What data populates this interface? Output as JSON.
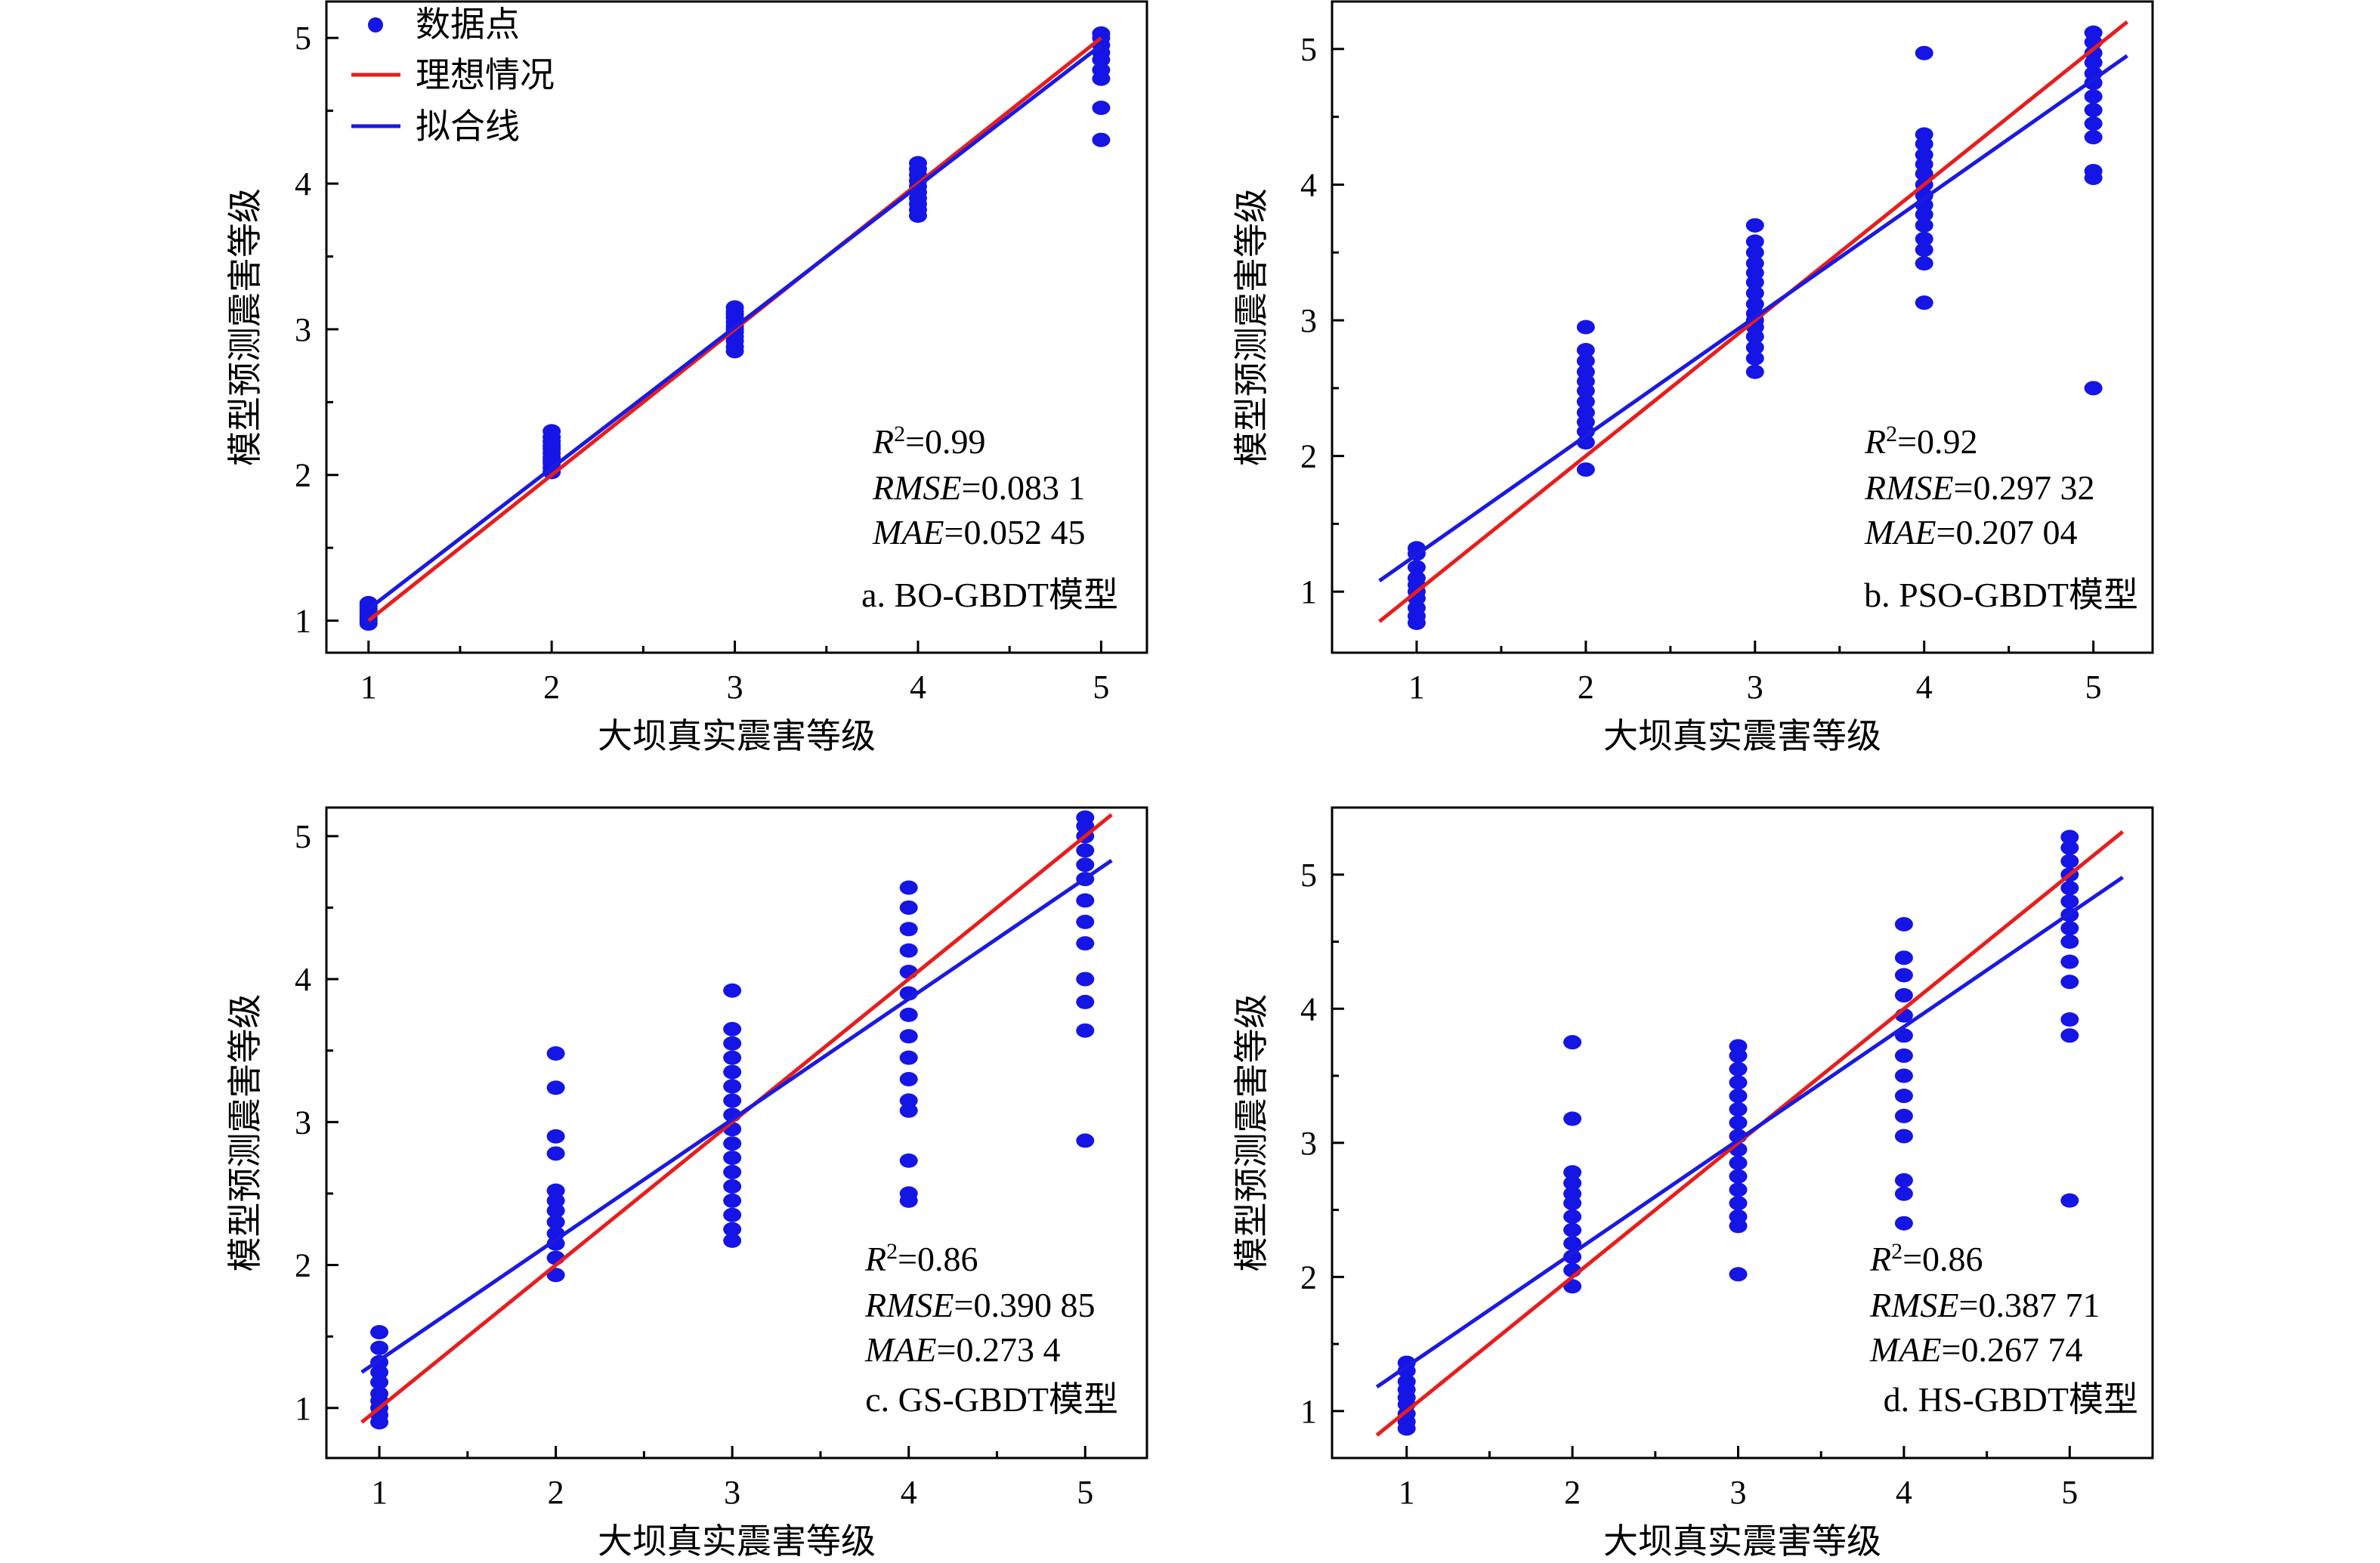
{
  "colors": {
    "points": "#1515e6",
    "ideal": "#e61e1e",
    "fit": "#1a1ae0",
    "axis": "#000000"
  },
  "legend": {
    "points": "数据点",
    "ideal": "理想情况",
    "fit": "拟合线",
    "placement": "top-left"
  },
  "chart_data": [
    {
      "type": "scatter",
      "panel_label": "a. BO-GBDT模型",
      "xlabel": "大坝真实震害等级",
      "ylabel": "模型预测震害等级",
      "xlim": [
        0.77,
        5.25
      ],
      "ylim": [
        0.78,
        5.25
      ],
      "xticks": [
        1,
        2,
        3,
        4,
        5
      ],
      "yticks": [
        1,
        2,
        3,
        4,
        5
      ],
      "grid": false,
      "stats": {
        "r2_label": "R",
        "r2_value": "=0.99",
        "rmse_label": "RMSE",
        "rmse_value": "=0.083 1",
        "mae_label": "MAE",
        "mae_value": "=0.052 45"
      },
      "ideal_line": {
        "x": [
          1,
          5
        ],
        "y": [
          1,
          5
        ]
      },
      "fit_line": {
        "x": [
          1,
          5
        ],
        "y": [
          1.08,
          4.95
        ]
      },
      "points": {
        "1": [
          0.98,
          1.0,
          1.02,
          1.04,
          1.06,
          1.08,
          1.1,
          1.12
        ],
        "2": [
          2.02,
          2.05,
          2.08,
          2.1,
          2.12,
          2.15,
          2.18,
          2.2,
          2.23,
          2.26,
          2.3
        ],
        "3": [
          2.85,
          2.88,
          2.92,
          2.95,
          2.98,
          3.0,
          3.02,
          3.05,
          3.08,
          3.1,
          3.12,
          3.15
        ],
        "4": [
          3.78,
          3.82,
          3.86,
          3.9,
          3.94,
          3.98,
          4.02,
          4.06,
          4.1,
          4.14
        ],
        "5": [
          4.3,
          4.52,
          4.72,
          4.78,
          4.85,
          4.9,
          4.95,
          5.0,
          5.03
        ]
      }
    },
    {
      "type": "scatter",
      "panel_label": "b. PSO-GBDT模型",
      "xlabel": "大坝真实震害等级",
      "ylabel": "模型预测震害等级",
      "xlim": [
        0.5,
        5.35
      ],
      "ylim": [
        0.55,
        5.35
      ],
      "xticks": [
        1,
        2,
        3,
        4,
        5
      ],
      "yticks": [
        1,
        2,
        3,
        4,
        5
      ],
      "grid": false,
      "stats": {
        "r2_label": "R",
        "r2_value": "=0.92",
        "rmse_label": "RMSE",
        "rmse_value": "=0.297 32",
        "mae_label": "MAE",
        "mae_value": "=0.207 04"
      },
      "ideal_line": {
        "x": [
          0.78,
          5.2
        ],
        "y": [
          0.78,
          5.2
        ]
      },
      "fit_line": {
        "x": [
          0.78,
          5.2
        ],
        "y": [
          1.08,
          4.95
        ]
      },
      "points": {
        "1": [
          0.77,
          0.82,
          0.88,
          0.95,
          1.0,
          1.05,
          1.1,
          1.18,
          1.28,
          1.32
        ],
        "2": [
          1.9,
          2.1,
          2.18,
          2.25,
          2.32,
          2.4,
          2.48,
          2.55,
          2.62,
          2.7,
          2.78,
          2.95
        ],
        "3": [
          2.62,
          2.72,
          2.8,
          2.88,
          2.95,
          3.0,
          3.05,
          3.12,
          3.2,
          3.28,
          3.35,
          3.42,
          3.5,
          3.58,
          3.7
        ],
        "4": [
          3.13,
          3.42,
          3.52,
          3.6,
          3.7,
          3.78,
          3.85,
          3.92,
          4.0,
          4.08,
          4.15,
          4.22,
          4.3,
          4.37,
          4.97
        ],
        "5": [
          2.5,
          4.05,
          4.1,
          4.35,
          4.45,
          4.55,
          4.65,
          4.75,
          4.82,
          4.9,
          4.97,
          5.05,
          5.12
        ]
      }
    },
    {
      "type": "scatter",
      "panel_label": "c. GS-GBDT模型",
      "xlabel": "大坝真实震害等级",
      "ylabel": "模型预测震害等级",
      "xlim": [
        0.7,
        5.35
      ],
      "ylim": [
        0.65,
        5.2
      ],
      "xticks": [
        1,
        2,
        3,
        4,
        5
      ],
      "yticks": [
        1,
        2,
        3,
        4,
        5
      ],
      "grid": false,
      "stats": {
        "r2_label": "R",
        "r2_value": "=0.86",
        "rmse_label": "RMSE",
        "rmse_value": "=0.390 85",
        "mae_label": "MAE",
        "mae_value": "=0.273 4"
      },
      "ideal_line": {
        "x": [
          0.9,
          5.15
        ],
        "y": [
          0.9,
          5.15
        ]
      },
      "fit_line": {
        "x": [
          0.9,
          5.15
        ],
        "y": [
          1.25,
          4.83
        ]
      },
      "points": {
        "1": [
          0.9,
          0.95,
          1.0,
          1.05,
          1.1,
          1.18,
          1.25,
          1.32,
          1.42,
          1.53
        ],
        "2": [
          1.93,
          2.05,
          2.15,
          2.22,
          2.3,
          2.38,
          2.45,
          2.52,
          2.78,
          2.9,
          3.24,
          3.48
        ],
        "3": [
          2.17,
          2.25,
          2.35,
          2.45,
          2.55,
          2.65,
          2.75,
          2.85,
          2.95,
          3.05,
          3.15,
          3.25,
          3.35,
          3.45,
          3.55,
          3.65,
          3.92
        ],
        "4": [
          2.45,
          2.5,
          2.73,
          3.08,
          3.15,
          3.3,
          3.45,
          3.6,
          3.75,
          3.9,
          4.05,
          4.2,
          4.35,
          4.5,
          4.64
        ],
        "5": [
          2.87,
          3.64,
          3.84,
          4.0,
          4.25,
          4.4,
          4.55,
          4.7,
          4.8,
          4.9,
          5.0,
          5.07,
          5.13
        ]
      }
    },
    {
      "type": "scatter",
      "panel_label": "d. HS-GBDT模型",
      "xlabel": "大坝真实震害等级",
      "ylabel": "模型预测震害等级",
      "xlim": [
        0.55,
        5.5
      ],
      "ylim": [
        0.65,
        5.5
      ],
      "xticks": [
        1,
        2,
        3,
        4,
        5
      ],
      "yticks": [
        1,
        2,
        3,
        4,
        5
      ],
      "grid": false,
      "stats": {
        "r2_label": "R",
        "r2_value": "=0.86",
        "rmse_label": "RMSE",
        "rmse_value": "=0.387 71",
        "mae_label": "MAE",
        "mae_value": "=0.267 74"
      },
      "ideal_line": {
        "x": [
          0.82,
          5.32
        ],
        "y": [
          0.82,
          5.32
        ]
      },
      "fit_line": {
        "x": [
          0.82,
          5.32
        ],
        "y": [
          1.18,
          4.98
        ]
      },
      "points": {
        "1": [
          0.87,
          0.92,
          0.98,
          1.05,
          1.1,
          1.16,
          1.22,
          1.3,
          1.36
        ],
        "2": [
          1.93,
          2.05,
          2.15,
          2.25,
          2.35,
          2.45,
          2.55,
          2.62,
          2.7,
          2.78,
          3.18,
          3.75
        ],
        "3": [
          2.02,
          2.38,
          2.45,
          2.55,
          2.65,
          2.75,
          2.85,
          2.95,
          3.05,
          3.15,
          3.25,
          3.35,
          3.45,
          3.55,
          3.65,
          3.72
        ],
        "4": [
          2.4,
          2.62,
          2.72,
          3.05,
          3.2,
          3.35,
          3.5,
          3.65,
          3.8,
          3.95,
          4.1,
          4.25,
          4.38,
          4.63
        ],
        "5": [
          2.57,
          3.8,
          3.92,
          4.2,
          4.35,
          4.5,
          4.6,
          4.7,
          4.8,
          4.9,
          5.0,
          5.1,
          5.2,
          5.28
        ]
      }
    }
  ]
}
